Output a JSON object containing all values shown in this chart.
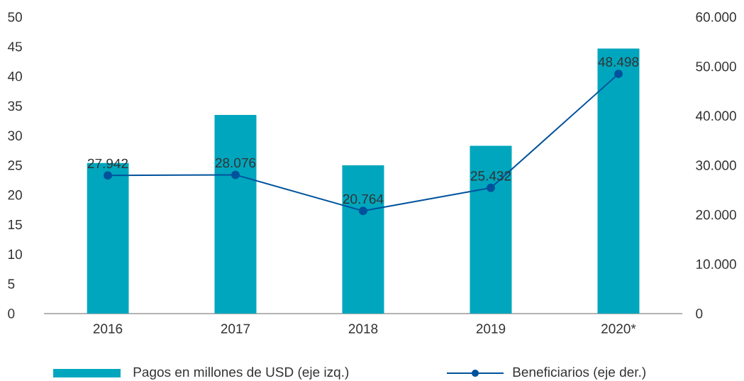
{
  "chart_data": {
    "type": "bar",
    "categories": [
      "2016",
      "2017",
      "2018",
      "2019",
      "2020*"
    ],
    "series": [
      {
        "name": "Pagos en millones de USD (eje izq.)",
        "color": "#00a6bd",
        "values": [
          25.4,
          33.5,
          25.0,
          28.3,
          44.7
        ]
      },
      {
        "name": "Beneficiarios (eje der.)",
        "type": "line",
        "axis": "y2",
        "color": "#00529c",
        "marker": "circle",
        "values": [
          27942,
          28076,
          20764,
          25432,
          48498
        ],
        "value_labels": [
          "27.942",
          "28.076",
          "20.764",
          "25.432",
          "48.498"
        ]
      }
    ],
    "ylim": [
      0,
      50
    ],
    "yticks": [
      0,
      5,
      10,
      15,
      20,
      25,
      30,
      35,
      40,
      45,
      50
    ],
    "y2lim": [
      0,
      60000
    ],
    "y2ticks": [
      {
        "value": 0,
        "label": "0"
      },
      {
        "value": 10000,
        "label": "10.000"
      },
      {
        "value": 20000,
        "label": "20.000"
      },
      {
        "value": 30000,
        "label": "30.000"
      },
      {
        "value": 40000,
        "label": "40.000"
      },
      {
        "value": 50000,
        "label": "50.000"
      },
      {
        "value": 60000,
        "label": "60.000"
      }
    ],
    "legend": "bottom"
  }
}
